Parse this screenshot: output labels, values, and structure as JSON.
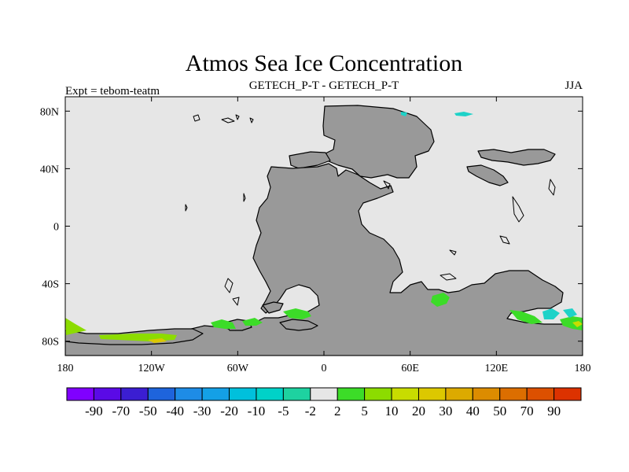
{
  "figure": {
    "title": "Atmos Sea Ice Concentration",
    "center_label": "GETECH_P-T - GETECH_P-T",
    "left_label": "Expt = tebom-teatm",
    "right_label": "JJA"
  },
  "axes": {
    "lon_range": [
      -180,
      180
    ],
    "lat_range": [
      -90,
      90
    ],
    "x_ticks": [
      {
        "value": -180,
        "label": "180"
      },
      {
        "value": -120,
        "label": "120W"
      },
      {
        "value": -60,
        "label": "60W"
      },
      {
        "value": 0,
        "label": "0"
      },
      {
        "value": 60,
        "label": "60E"
      },
      {
        "value": 120,
        "label": "120E"
      },
      {
        "value": 180,
        "label": "180"
      }
    ],
    "y_ticks": [
      {
        "value": 80,
        "label": "80N"
      },
      {
        "value": 40,
        "label": "40N"
      },
      {
        "value": 0,
        "label": "0"
      },
      {
        "value": -40,
        "label": "40S"
      },
      {
        "value": -80,
        "label": "80S"
      }
    ]
  },
  "colors": {
    "ocean": "#e6e6e6",
    "land": "#999999",
    "coast": "#000000"
  },
  "colorbar": {
    "bins": [
      {
        "color": "#8000ff"
      },
      {
        "color": "#5a0ae6"
      },
      {
        "color": "#3b1ed2"
      },
      {
        "color": "#1e64dc"
      },
      {
        "color": "#1e8ce6"
      },
      {
        "color": "#14a0e6"
      },
      {
        "color": "#00c0dc"
      },
      {
        "color": "#00d2c8"
      },
      {
        "color": "#1ed2a0"
      },
      {
        "color": "#e6e6e6"
      },
      {
        "color": "#3cdc28"
      },
      {
        "color": "#8cdc00"
      },
      {
        "color": "#c8dc00"
      },
      {
        "color": "#dcc800"
      },
      {
        "color": "#dcaa00"
      },
      {
        "color": "#dc8c00"
      },
      {
        "color": "#dc6e00"
      },
      {
        "color": "#dc5000"
      },
      {
        "color": "#dc3200"
      }
    ],
    "labels": [
      "-90",
      "-70",
      "-50",
      "-40",
      "-30",
      "-20",
      "-10",
      "-5",
      "-2",
      "2",
      "5",
      "10",
      "20",
      "30",
      "40",
      "50",
      "70",
      "90"
    ]
  },
  "overlays": [
    {
      "name": "anomaly-south-pacific",
      "color": "#8cdc00"
    },
    {
      "name": "anomaly-south-atlantic",
      "color": "#3cdc28"
    },
    {
      "name": "anomaly-south-indian",
      "color": "#3cdc28"
    },
    {
      "name": "anomaly-southwest-pacific",
      "color": "#3cdc28"
    },
    {
      "name": "anomaly-cyan-north",
      "color": "#1ed2c8"
    },
    {
      "name": "anomaly-cyan-southeast",
      "color": "#1ed2c8"
    },
    {
      "name": "anomaly-yellow-southeast",
      "color": "#c8dc00"
    },
    {
      "name": "anomaly-orange-south-pacific",
      "color": "#dcc800"
    }
  ]
}
